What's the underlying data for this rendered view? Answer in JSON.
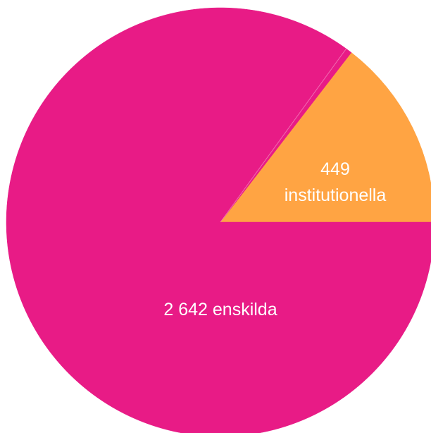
{
  "chart_data": {
    "type": "pie",
    "slices": [
      {
        "key": "institutionella",
        "value": 449,
        "color": "#ffa443",
        "label_lines": [
          "449",
          "institutionella"
        ]
      },
      {
        "key": "enskilda",
        "value": 2642,
        "color": "#e81b86",
        "label_lines": [
          "2 642 enskilda"
        ]
      }
    ],
    "title": "",
    "legend": "none"
  }
}
